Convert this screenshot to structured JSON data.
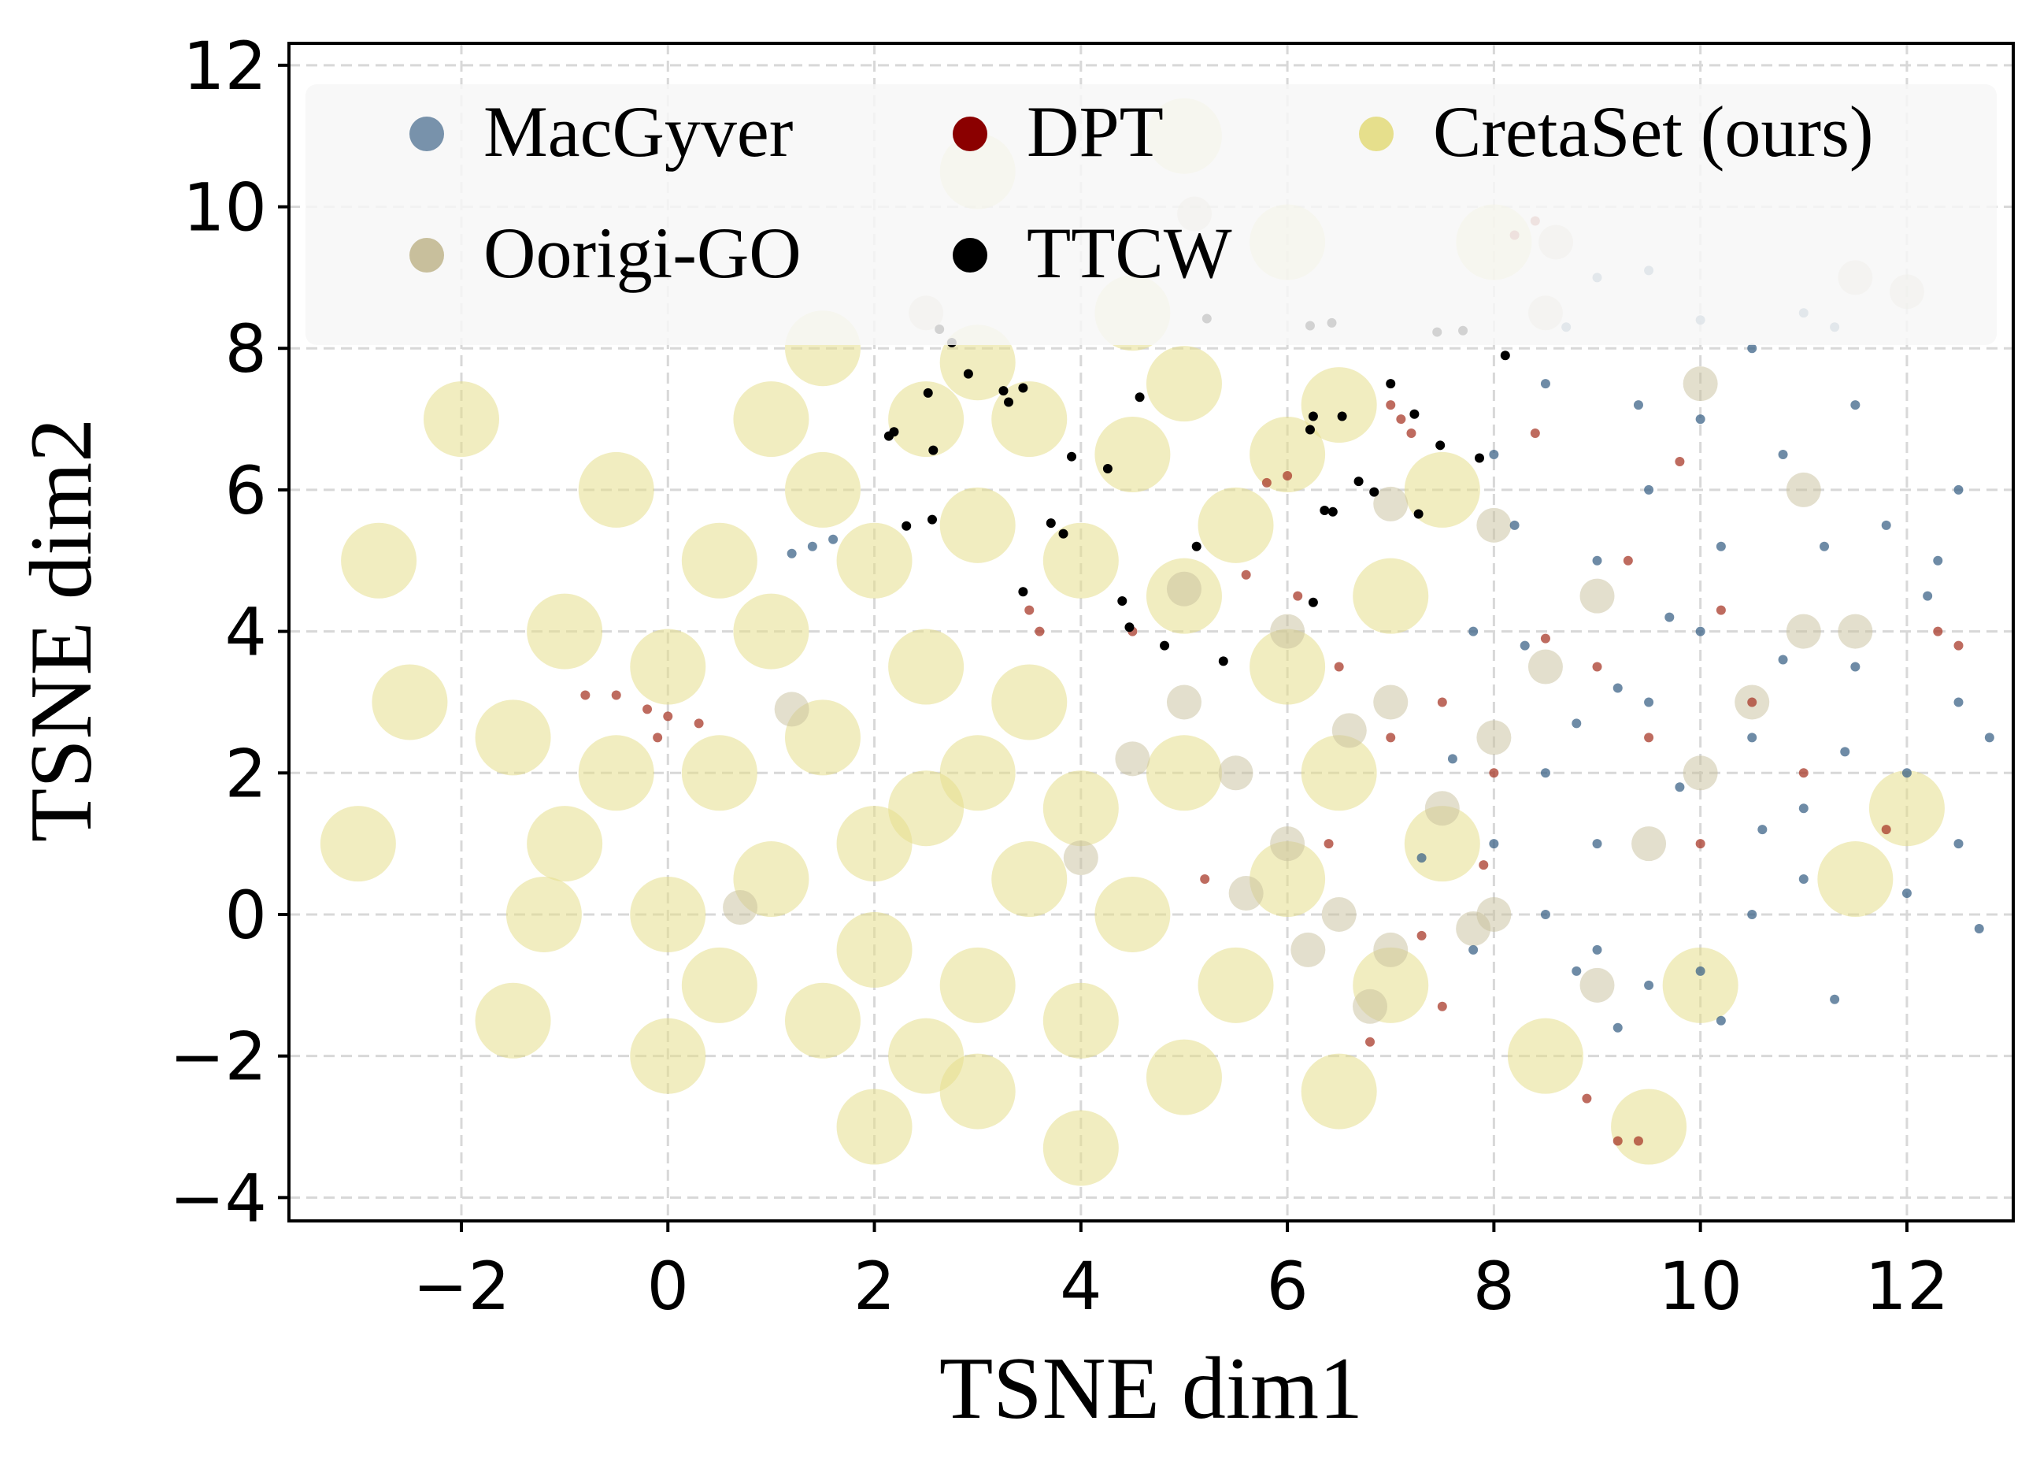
{
  "chart_data": {
    "type": "scatter",
    "xlabel": "TSNE dim1",
    "ylabel": "TSNE dim2",
    "xlim": [
      -3.67,
      13.03
    ],
    "ylim": [
      -4.33,
      12.31
    ],
    "xticks": [
      "-2",
      "0",
      "2",
      "4",
      "6",
      "8",
      "10",
      "12"
    ],
    "yticks": [
      "-4",
      "-2",
      "0",
      "2",
      "4",
      "6",
      "8",
      "10",
      "12"
    ],
    "grid": true,
    "legend_position": "top",
    "series": [
      {
        "name": "CretaSet (ours)",
        "color": "#e6df8c",
        "points": [
          [
            2.5,
            1.5
          ],
          [
            2,
            1
          ],
          [
            3,
            2
          ],
          [
            1.5,
            2.5
          ],
          [
            3.5,
            0.5
          ],
          [
            1,
            0.5
          ],
          [
            0.5,
            2
          ],
          [
            2.5,
            3.5
          ],
          [
            3.5,
            3
          ],
          [
            4,
            1.5
          ],
          [
            2,
            -0.5
          ],
          [
            3,
            -1
          ],
          [
            4.5,
            0
          ],
          [
            5,
            2
          ],
          [
            1,
            4
          ],
          [
            2,
            5
          ],
          [
            3,
            5.5
          ],
          [
            4,
            5
          ],
          [
            5,
            4.5
          ],
          [
            4.5,
            6.5
          ],
          [
            3.5,
            7
          ],
          [
            2.5,
            7
          ],
          [
            1.5,
            6
          ],
          [
            0.5,
            5
          ],
          [
            0,
            3.5
          ],
          [
            -0.5,
            2
          ],
          [
            -1,
            1
          ],
          [
            0,
            0
          ],
          [
            0.5,
            -1
          ],
          [
            1.5,
            -1.5
          ],
          [
            2.5,
            -2
          ],
          [
            4,
            -1.5
          ],
          [
            5.5,
            -1
          ],
          [
            6,
            0.5
          ],
          [
            6.5,
            2
          ],
          [
            6,
            3.5
          ],
          [
            5.5,
            5.5
          ],
          [
            6,
            6.5
          ],
          [
            6.5,
            7.2
          ],
          [
            5,
            7.5
          ],
          [
            3,
            7.8
          ],
          [
            1,
            7
          ],
          [
            -0.5,
            6
          ],
          [
            -1,
            4
          ],
          [
            -1.5,
            2.5
          ],
          [
            -1.2,
            0
          ],
          [
            0,
            -2
          ],
          [
            3,
            -2.5
          ],
          [
            5,
            -2.3
          ],
          [
            7,
            -1
          ],
          [
            7.5,
            1
          ],
          [
            7,
            4.5
          ],
          [
            7.5,
            6
          ],
          [
            2,
            -3
          ],
          [
            -2.5,
            3
          ],
          [
            -3,
            1
          ],
          [
            -2.8,
            5
          ],
          [
            4,
            -3.3
          ],
          [
            8.5,
            -2
          ],
          [
            9.5,
            -3
          ],
          [
            6,
            9.5
          ],
          [
            3,
            10.5
          ],
          [
            5,
            11
          ],
          [
            -2,
            7
          ],
          [
            10,
            -1
          ],
          [
            11.5,
            0.5
          ],
          [
            12,
            1.5
          ],
          [
            8,
            9.5
          ],
          [
            4.5,
            8.5
          ],
          [
            1.5,
            8
          ],
          [
            -1.5,
            -1.5
          ],
          [
            6.5,
            -2.5
          ]
        ]
      },
      {
        "name": "Oorigi-GO",
        "color": "#c8bf9c",
        "points": [
          [
            5,
            3
          ],
          [
            5.5,
            2
          ],
          [
            6,
            1
          ],
          [
            6.5,
            0
          ],
          [
            7,
            -0.5
          ],
          [
            7.5,
            1.5
          ],
          [
            8,
            2.5
          ],
          [
            8.5,
            3.5
          ],
          [
            9,
            4.5
          ],
          [
            6,
            4
          ],
          [
            5,
            4.6
          ],
          [
            4.5,
            2.2
          ],
          [
            4,
            0.8
          ],
          [
            6.8,
            -1.3
          ],
          [
            8,
            0
          ],
          [
            9.5,
            1
          ],
          [
            10,
            2
          ],
          [
            10.5,
            3
          ],
          [
            11,
            4
          ],
          [
            11.5,
            4
          ],
          [
            11,
            6
          ],
          [
            10,
            7.5
          ],
          [
            8.5,
            8.5
          ],
          [
            8.6,
            9.5
          ],
          [
            11.5,
            9
          ],
          [
            12,
            8.8
          ],
          [
            5.1,
            9.9
          ],
          [
            2.5,
            8.5
          ],
          [
            1.2,
            2.9
          ],
          [
            0.7,
            0.1
          ],
          [
            7,
            3
          ],
          [
            6.2,
            -0.5
          ],
          [
            9,
            -1
          ],
          [
            8,
            5.5
          ],
          [
            7,
            5.8
          ],
          [
            6.6,
            2.6
          ],
          [
            5.6,
            0.3
          ],
          [
            7.8,
            -0.2
          ]
        ]
      },
      {
        "name": "MacGyver",
        "color": "#7892ab",
        "point_color": "#3e6488",
        "points": [
          [
            8.5,
            2
          ],
          [
            9,
            1
          ],
          [
            9.5,
            3
          ],
          [
            10,
            4
          ],
          [
            10.5,
            2.5
          ],
          [
            11,
            1.5
          ],
          [
            11.5,
            3.5
          ],
          [
            12,
            2
          ],
          [
            12.5,
            3
          ],
          [
            9,
            5
          ],
          [
            9.5,
            6
          ],
          [
            10,
            7
          ],
          [
            10.5,
            8
          ],
          [
            11,
            8.5
          ],
          [
            10,
            8.4
          ],
          [
            9.5,
            9.1
          ],
          [
            9,
            9
          ],
          [
            8.5,
            7.5
          ],
          [
            8,
            6.5
          ],
          [
            8.2,
            5.5
          ],
          [
            7.8,
            4
          ],
          [
            8,
            1
          ],
          [
            8.5,
            0
          ],
          [
            9,
            -0.5
          ],
          [
            9.5,
            -1
          ],
          [
            10,
            -0.8
          ],
          [
            10.5,
            0
          ],
          [
            11,
            0.5
          ],
          [
            11.3,
            -1.2
          ],
          [
            9.2,
            -1.6
          ],
          [
            10.2,
            -1.5
          ],
          [
            12.5,
            1
          ],
          [
            12.8,
            2.5
          ],
          [
            12.2,
            4.5
          ],
          [
            11.8,
            5.5
          ],
          [
            12.5,
            6
          ],
          [
            11.5,
            7.2
          ],
          [
            10.8,
            6.5
          ],
          [
            10.2,
            5.2
          ],
          [
            9.7,
            4.2
          ],
          [
            9.2,
            3.2
          ],
          [
            8.8,
            2.7
          ],
          [
            8.3,
            3.8
          ],
          [
            7.6,
            2.2
          ],
          [
            7.3,
            0.8
          ],
          [
            7.8,
            -0.5
          ],
          [
            8.8,
            -0.8
          ],
          [
            10.8,
            3.6
          ],
          [
            11.4,
            2.3
          ],
          [
            12,
            0.3
          ],
          [
            12.7,
            -0.2
          ],
          [
            9.8,
            1.8
          ],
          [
            10.6,
            1.2
          ],
          [
            11.2,
            5.2
          ],
          [
            9.4,
            7.2
          ],
          [
            8.7,
            8.3
          ],
          [
            1.4,
            5.2
          ],
          [
            1.6,
            5.3
          ],
          [
            1.2,
            5.1
          ],
          [
            11.3,
            8.3
          ],
          [
            12.3,
            5
          ]
        ]
      },
      {
        "name": "DPT",
        "color": "#8b0000",
        "point_color": "#a83a2a",
        "points": [
          [
            -0.8,
            3.1
          ],
          [
            -0.5,
            3.1
          ],
          [
            -0.2,
            2.9
          ],
          [
            0,
            2.8
          ],
          [
            0.3,
            2.7
          ],
          [
            -0.1,
            2.5
          ],
          [
            7,
            7.2
          ],
          [
            7.1,
            7
          ],
          [
            7.2,
            6.8
          ],
          [
            8.4,
            6.8
          ],
          [
            9.8,
            6.4
          ],
          [
            6,
            6.2
          ],
          [
            5.8,
            6.1
          ],
          [
            6.1,
            4.5
          ],
          [
            5.6,
            4.8
          ],
          [
            4.5,
            4
          ],
          [
            3.5,
            4.3
          ],
          [
            3.6,
            4
          ],
          [
            6.5,
            3.5
          ],
          [
            7,
            2.5
          ],
          [
            7.5,
            3
          ],
          [
            8,
            2
          ],
          [
            8.5,
            3.9
          ],
          [
            9,
            3.5
          ],
          [
            9.5,
            2.5
          ],
          [
            10,
            1
          ],
          [
            10.5,
            3
          ],
          [
            11,
            2
          ],
          [
            11.8,
            1.2
          ],
          [
            12.3,
            4
          ],
          [
            12.5,
            3.8
          ],
          [
            7.3,
            -0.3
          ],
          [
            7.5,
            -1.3
          ],
          [
            8.9,
            -2.6
          ],
          [
            9.2,
            -3.2
          ],
          [
            9.4,
            -3.2
          ],
          [
            6.8,
            -1.8
          ],
          [
            8.2,
            9.6
          ],
          [
            8.4,
            9.8
          ],
          [
            7.9,
            0.7
          ],
          [
            6.4,
            1
          ],
          [
            5.2,
            0.5
          ],
          [
            9.3,
            5
          ],
          [
            10.2,
            4.3
          ]
        ]
      },
      {
        "name": "TTCW",
        "color": "#000000",
        "points": [
          [
            2.63,
            8.27
          ],
          [
            2.75,
            8.08
          ],
          [
            2.14,
            6.76
          ],
          [
            2.19,
            6.82
          ],
          [
            2.52,
            7.37
          ],
          [
            2.91,
            7.64
          ],
          [
            3.25,
            7.4
          ],
          [
            3.3,
            7.24
          ],
          [
            3.44,
            7.44
          ],
          [
            2.57,
            6.56
          ],
          [
            2.31,
            5.49
          ],
          [
            2.56,
            5.58
          ],
          [
            3.71,
            5.53
          ],
          [
            3.83,
            5.38
          ],
          [
            3.44,
            4.56
          ],
          [
            4.26,
            6.3
          ],
          [
            3.91,
            6.47
          ],
          [
            4.57,
            7.31
          ],
          [
            4.4,
            4.43
          ],
          [
            4.47,
            4.06
          ],
          [
            4.81,
            3.8
          ],
          [
            5.12,
            5.2
          ],
          [
            5.38,
            3.58
          ],
          [
            5.22,
            8.42
          ],
          [
            6.22,
            8.32
          ],
          [
            6.53,
            7.04
          ],
          [
            6.43,
            8.36
          ],
          [
            6.69,
            6.12
          ],
          [
            6.25,
            7.04
          ],
          [
            6.22,
            6.85
          ],
          [
            6.36,
            5.71
          ],
          [
            6.44,
            5.69
          ],
          [
            6.84,
            5.97
          ],
          [
            7.0,
            7.5
          ],
          [
            7.23,
            7.07
          ],
          [
            7.48,
            6.63
          ],
          [
            7.45,
            8.23
          ],
          [
            7.7,
            8.25
          ],
          [
            8.11,
            7.9
          ],
          [
            6.25,
            4.41
          ],
          [
            7.27,
            5.66
          ],
          [
            7.86,
            6.45
          ]
        ]
      }
    ]
  }
}
